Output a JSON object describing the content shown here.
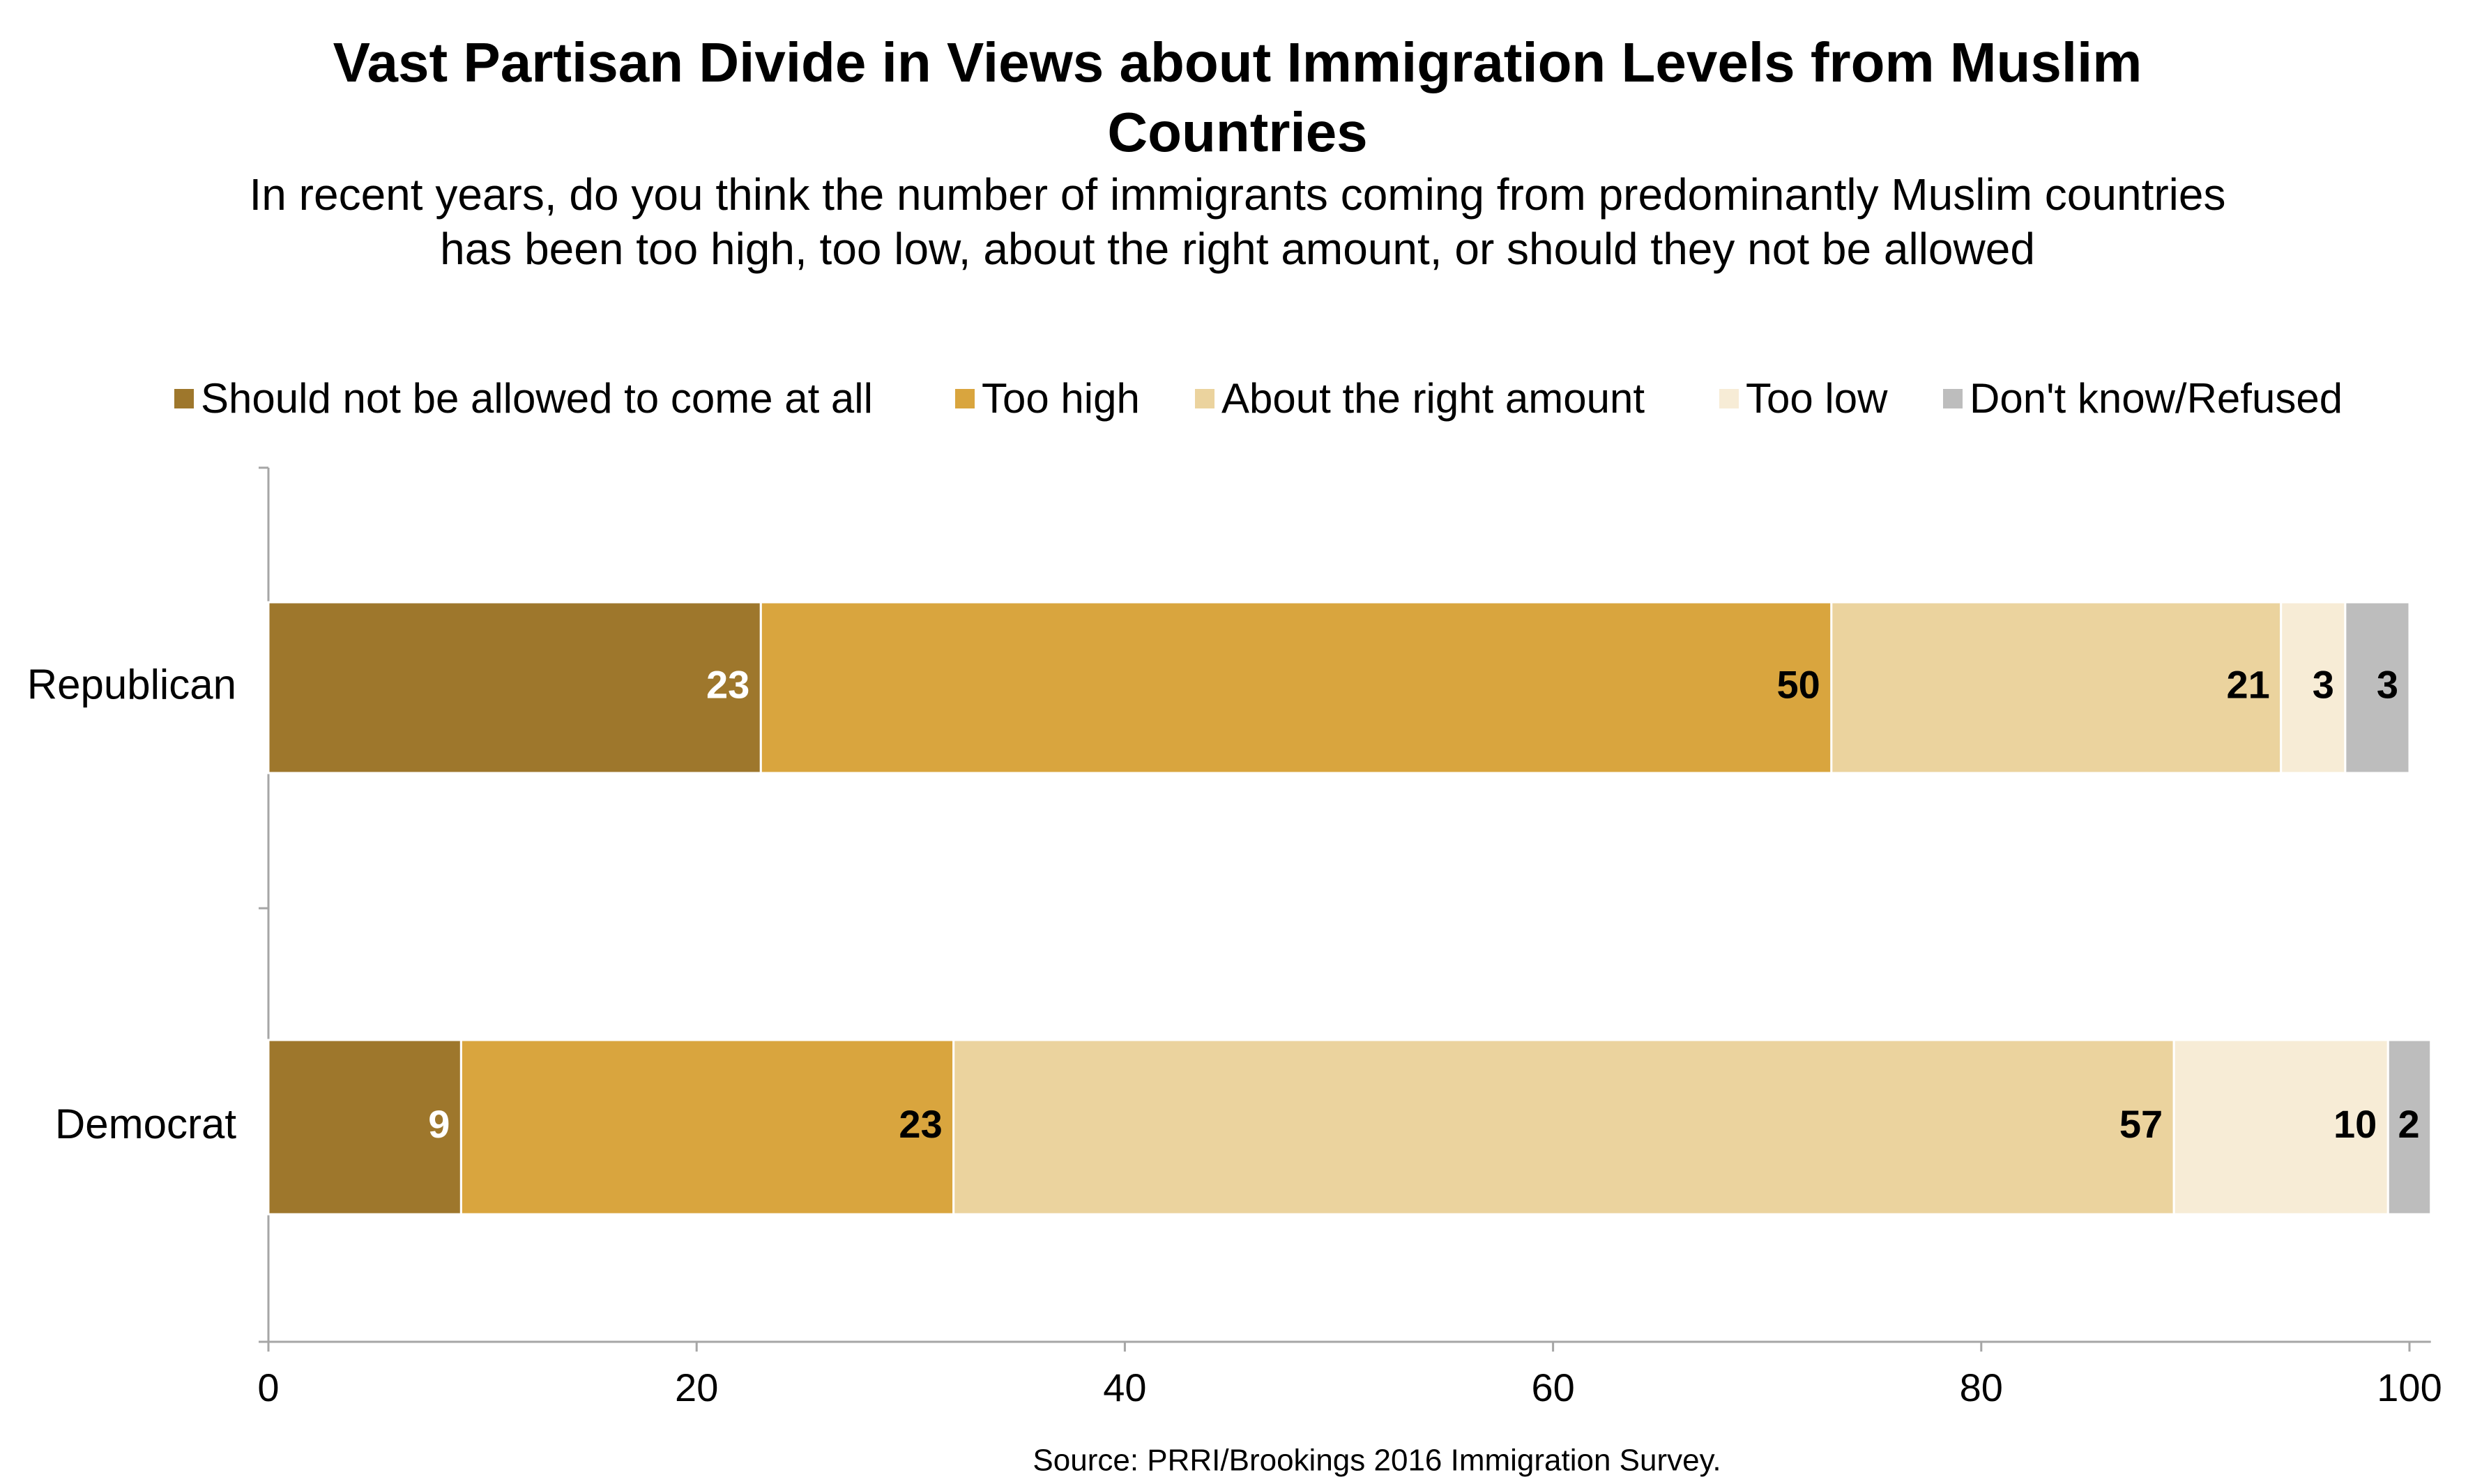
{
  "chart_data": {
    "type": "stacked-bar-horizontal",
    "title": "Vast Partisan Divide in Views about Immigration Levels from Muslim Countries",
    "subtitle": "In recent years, do you think the number of immigrants coming from predominantly Muslim countries has been too high, too low, about the right amount, or should they not be allowed",
    "categories": [
      "Republican",
      "Democrat"
    ],
    "series": [
      {
        "name": "Should not be allowed to come at all",
        "color": "#9e772c",
        "values": [
          23,
          9
        ]
      },
      {
        "name": "Too high",
        "color": "#d9a53e",
        "values": [
          50,
          23
        ]
      },
      {
        "name": "About the right amount",
        "color": "#ebd39e",
        "values": [
          21,
          57
        ]
      },
      {
        "name": "Too low",
        "color": "#f7ecd6",
        "values": [
          3,
          10
        ]
      },
      {
        "name": "Don't know/Refused",
        "color": "#bdbdbd",
        "values": [
          3,
          2
        ]
      }
    ],
    "xlim": [
      0,
      101
    ],
    "xticks": [
      0,
      20,
      40,
      60,
      80,
      100
    ],
    "legend": "top",
    "source": "Source: PRRI/Brookings 2016 Immigration Survey."
  }
}
